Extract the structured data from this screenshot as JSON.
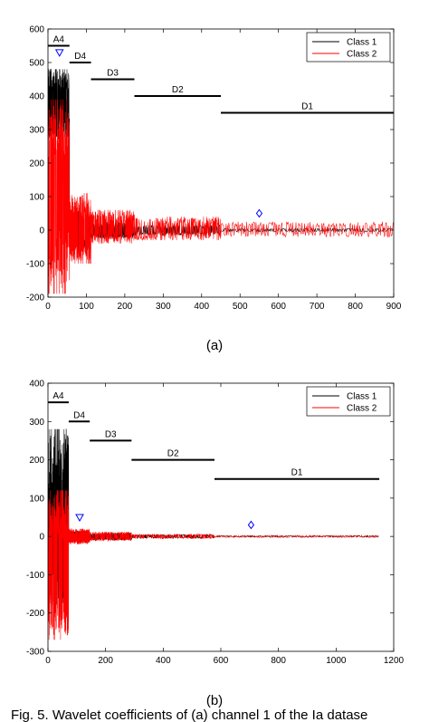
{
  "chart_data": [
    {
      "type": "line",
      "panel_label": "(a)",
      "xlim": [
        0,
        900
      ],
      "ylim": [
        -200,
        600
      ],
      "xticks": [
        "0",
        "100",
        "200",
        "300",
        "400",
        "500",
        "600",
        "700",
        "800",
        "900"
      ],
      "yticks": [
        "-200",
        "-100",
        "0",
        "100",
        "200",
        "300",
        "400",
        "500",
        "600"
      ],
      "grid": false,
      "legend": {
        "placement": "top-right",
        "entries": [
          {
            "name": "Class 1",
            "color": "#000000"
          },
          {
            "name": "Class 2",
            "color": "#ff0000"
          }
        ]
      },
      "bands": [
        {
          "label": "A4",
          "x": [
            0,
            56
          ],
          "y": 550
        },
        {
          "label": "D4",
          "x": [
            56,
            112
          ],
          "y": 500
        },
        {
          "label": "D3",
          "x": [
            112,
            225
          ],
          "y": 450
        },
        {
          "label": "D2",
          "x": [
            225,
            450
          ],
          "y": 400
        },
        {
          "label": "D1",
          "x": [
            450,
            900
          ],
          "y": 350
        }
      ],
      "markers": [
        {
          "shape": "triangle-down",
          "x": 30,
          "y": 530,
          "color": "#0000ff"
        },
        {
          "shape": "diamond",
          "x": 550,
          "y": 50,
          "color": "#0000ff"
        }
      ],
      "series": [
        {
          "name": "Class 1",
          "color": "#000000",
          "envelope": [
            {
              "x": [
                0,
                56
              ],
              "upper": 480,
              "lower": 270
            },
            {
              "x": [
                56,
                112
              ],
              "upper": 60,
              "lower": -60
            },
            {
              "x": [
                112,
                225
              ],
              "upper": 25,
              "lower": -25
            },
            {
              "x": [
                225,
                450
              ],
              "upper": 15,
              "lower": -15
            },
            {
              "x": [
                450,
                900
              ],
              "upper": 5,
              "lower": -5
            }
          ]
        },
        {
          "name": "Class 2",
          "color": "#ff0000",
          "envelope": [
            {
              "x": [
                0,
                56
              ],
              "upper": 390,
              "lower": -190
            },
            {
              "x": [
                56,
                112
              ],
              "upper": 110,
              "lower": -100
            },
            {
              "x": [
                112,
                225
              ],
              "upper": 60,
              "lower": -40
            },
            {
              "x": [
                225,
                450
              ],
              "upper": 40,
              "lower": -30
            },
            {
              "x": [
                450,
                900
              ],
              "upper": 25,
              "lower": -20
            }
          ]
        }
      ]
    },
    {
      "type": "line",
      "panel_label": "(b)",
      "xlim": [
        0,
        1200
      ],
      "ylim": [
        -300,
        400
      ],
      "xticks": [
        "0",
        "200",
        "400",
        "600",
        "800",
        "1000",
        "1200"
      ],
      "yticks": [
        "-300",
        "-200",
        "-100",
        "0",
        "100",
        "200",
        "300",
        "400"
      ],
      "grid": false,
      "legend": {
        "placement": "top-right",
        "entries": [
          {
            "name": "Class 1",
            "color": "#000000"
          },
          {
            "name": "Class 2",
            "color": "#ff0000"
          }
        ]
      },
      "bands": [
        {
          "label": "A4",
          "x": [
            0,
            72
          ],
          "y": 350
        },
        {
          "label": "D4",
          "x": [
            72,
            145
          ],
          "y": 300
        },
        {
          "label": "D3",
          "x": [
            145,
            290
          ],
          "y": 250
        },
        {
          "label": "D2",
          "x": [
            290,
            578
          ],
          "y": 200
        },
        {
          "label": "D1",
          "x": [
            578,
            1150
          ],
          "y": 150
        }
      ],
      "markers": [
        {
          "shape": "triangle-down",
          "x": 110,
          "y": 50,
          "color": "#0000ff"
        },
        {
          "shape": "diamond",
          "x": 705,
          "y": 30,
          "color": "#0000ff"
        }
      ],
      "series": [
        {
          "name": "Class 1",
          "color": "#000000",
          "envelope": [
            {
              "x": [
                0,
                72
              ],
              "upper": 280,
              "lower": -200
            },
            {
              "x": [
                72,
                145
              ],
              "upper": 15,
              "lower": -15
            },
            {
              "x": [
                145,
                290
              ],
              "upper": 10,
              "lower": -10
            },
            {
              "x": [
                290,
                578
              ],
              "upper": 5,
              "lower": -5
            },
            {
              "x": [
                578,
                1150
              ],
              "upper": 2,
              "lower": -2
            }
          ]
        },
        {
          "name": "Class 2",
          "color": "#ff0000",
          "envelope": [
            {
              "x": [
                0,
                72
              ],
              "upper": 120,
              "lower": -270
            },
            {
              "x": [
                72,
                145
              ],
              "upper": 20,
              "lower": -20
            },
            {
              "x": [
                145,
                290
              ],
              "upper": 12,
              "lower": -12
            },
            {
              "x": [
                290,
                578
              ],
              "upper": 6,
              "lower": -6
            },
            {
              "x": [
                578,
                1150
              ],
              "upper": 3,
              "lower": -3
            }
          ]
        }
      ]
    }
  ],
  "caption_fragment": "Fig. 5. Wavelet coefficients of (a) channel 1 of the Ia datase"
}
